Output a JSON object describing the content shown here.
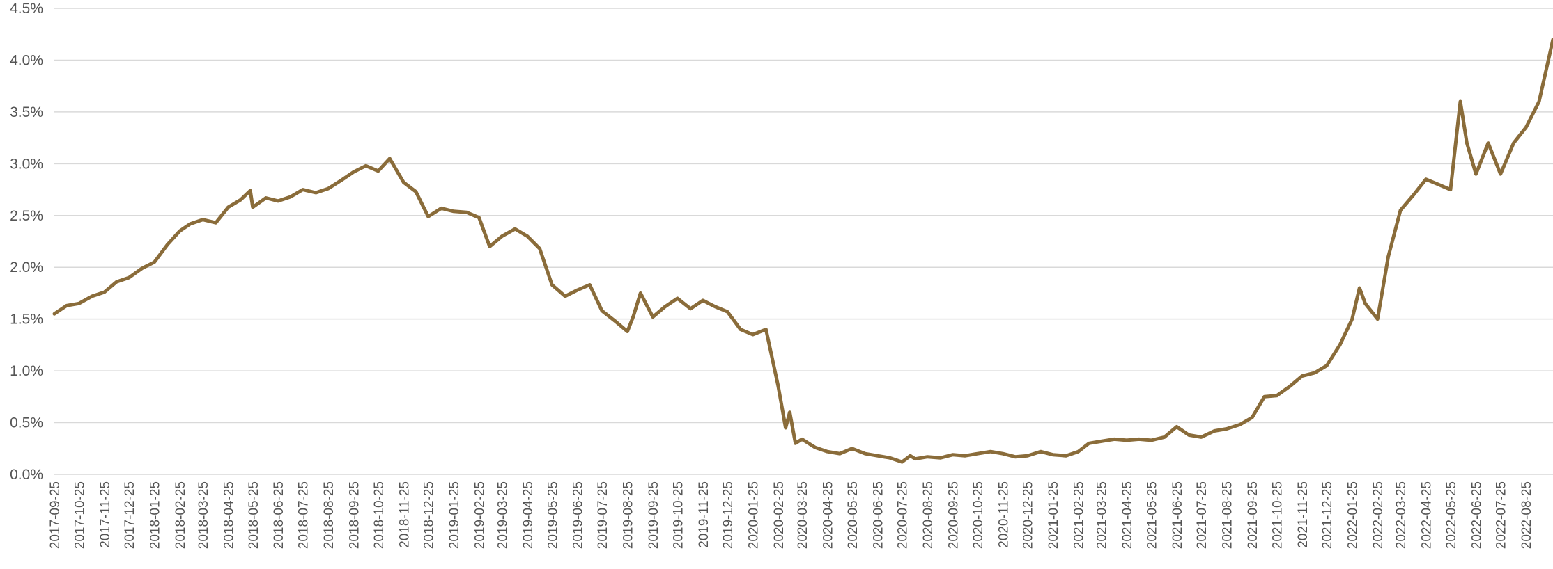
{
  "chart_data": {
    "type": "line",
    "title": "",
    "xlabel": "",
    "ylabel": "",
    "ylim": [
      0,
      4.5
    ],
    "xlim": [
      "2017-09-25",
      "2022-09-27"
    ],
    "grid": "horizontal",
    "legend": "none",
    "line_color": "#8a6c3a",
    "grid_color": "#d9d9d9",
    "y_ticks": [
      {
        "value": 0.0,
        "label": "0.0%"
      },
      {
        "value": 0.5,
        "label": "0.5%"
      },
      {
        "value": 1.0,
        "label": "1.0%"
      },
      {
        "value": 1.5,
        "label": "1.5%"
      },
      {
        "value": 2.0,
        "label": "2.0%"
      },
      {
        "value": 2.5,
        "label": "2.5%"
      },
      {
        "value": 3.0,
        "label": "3.0%"
      },
      {
        "value": 3.5,
        "label": "3.5%"
      },
      {
        "value": 4.0,
        "label": "4.0%"
      },
      {
        "value": 4.5,
        "label": "4.5%"
      }
    ],
    "x_ticks": [
      "2017-09-25",
      "2017-10-25",
      "2017-11-25",
      "2017-12-25",
      "2018-01-25",
      "2018-02-25",
      "2018-03-25",
      "2018-04-25",
      "2018-05-25",
      "2018-06-25",
      "2018-07-25",
      "2018-08-25",
      "2018-09-25",
      "2018-10-25",
      "2018-11-25",
      "2018-12-25",
      "2019-01-25",
      "2019-02-25",
      "2019-03-25",
      "2019-04-25",
      "2019-05-25",
      "2019-06-25",
      "2019-07-25",
      "2019-08-25",
      "2019-09-25",
      "2019-10-25",
      "2019-11-25",
      "2019-12-25",
      "2020-01-25",
      "2020-02-25",
      "2020-03-25",
      "2020-04-25",
      "2020-05-25",
      "2020-06-25",
      "2020-07-25",
      "2020-08-25",
      "2020-09-25",
      "2020-10-25",
      "2020-11-25",
      "2020-12-25",
      "2021-01-25",
      "2021-02-25",
      "2021-03-25",
      "2021-04-25",
      "2021-05-25",
      "2021-06-25",
      "2021-07-25",
      "2021-08-25",
      "2021-09-25",
      "2021-10-25",
      "2021-11-25",
      "2021-12-25",
      "2022-01-25",
      "2022-02-25",
      "2022-03-25",
      "2022-04-25",
      "2022-05-25",
      "2022-06-25",
      "2022-07-25",
      "2022-08-25"
    ],
    "series": [
      {
        "x": [
          "2017-09-25",
          "2017-10-10",
          "2017-10-25",
          "2017-11-10",
          "2017-11-25",
          "2017-12-10",
          "2017-12-25",
          "2018-01-10",
          "2018-01-25",
          "2018-02-10",
          "2018-02-25",
          "2018-03-10",
          "2018-03-25",
          "2018-04-10",
          "2018-04-25",
          "2018-05-10",
          "2018-05-22",
          "2018-05-25",
          "2018-06-10",
          "2018-06-25",
          "2018-07-10",
          "2018-07-25",
          "2018-08-10",
          "2018-08-25",
          "2018-09-10",
          "2018-09-25",
          "2018-10-10",
          "2018-10-25",
          "2018-11-08",
          "2018-11-25",
          "2018-12-10",
          "2018-12-25",
          "2019-01-10",
          "2019-01-25",
          "2019-02-10",
          "2019-02-25",
          "2019-03-10",
          "2019-03-25",
          "2019-04-10",
          "2019-04-25",
          "2019-05-10",
          "2019-05-25",
          "2019-06-10",
          "2019-06-25",
          "2019-07-10",
          "2019-07-25",
          "2019-08-10",
          "2019-08-25",
          "2019-09-01",
          "2019-09-10",
          "2019-09-25",
          "2019-10-10",
          "2019-10-25",
          "2019-11-10",
          "2019-11-25",
          "2019-12-10",
          "2019-12-25",
          "2020-01-10",
          "2020-01-25",
          "2020-02-10",
          "2020-02-25",
          "2020-03-05",
          "2020-03-10",
          "2020-03-17",
          "2020-03-25",
          "2020-04-10",
          "2020-04-25",
          "2020-05-10",
          "2020-05-25",
          "2020-06-10",
          "2020-06-25",
          "2020-07-10",
          "2020-07-25",
          "2020-08-04",
          "2020-08-10",
          "2020-08-25",
          "2020-09-10",
          "2020-09-25",
          "2020-10-10",
          "2020-10-25",
          "2020-11-10",
          "2020-11-25",
          "2020-12-10",
          "2020-12-25",
          "2021-01-10",
          "2021-01-25",
          "2021-02-10",
          "2021-02-25",
          "2021-03-10",
          "2021-03-25",
          "2021-04-10",
          "2021-04-25",
          "2021-05-10",
          "2021-05-25",
          "2021-06-10",
          "2021-06-25",
          "2021-07-10",
          "2021-07-25",
          "2021-08-10",
          "2021-08-25",
          "2021-09-10",
          "2021-09-25",
          "2021-10-10",
          "2021-10-25",
          "2021-11-10",
          "2021-11-25",
          "2021-12-10",
          "2021-12-25",
          "2022-01-10",
          "2022-01-25",
          "2022-02-03",
          "2022-02-10",
          "2022-02-25",
          "2022-03-10",
          "2022-03-25",
          "2022-04-10",
          "2022-04-25",
          "2022-05-10",
          "2022-05-25",
          "2022-06-06",
          "2022-06-14",
          "2022-06-25",
          "2022-07-10",
          "2022-07-25",
          "2022-08-10",
          "2022-08-25",
          "2022-09-10",
          "2022-09-27"
        ],
        "values": [
          1.55,
          1.63,
          1.65,
          1.72,
          1.76,
          1.86,
          1.9,
          1.99,
          2.05,
          2.22,
          2.35,
          2.42,
          2.46,
          2.43,
          2.58,
          2.65,
          2.74,
          2.58,
          2.67,
          2.64,
          2.68,
          2.75,
          2.72,
          2.76,
          2.84,
          2.92,
          2.98,
          2.93,
          3.05,
          2.82,
          2.73,
          2.49,
          2.57,
          2.54,
          2.53,
          2.48,
          2.2,
          2.3,
          2.37,
          2.3,
          2.18,
          1.83,
          1.72,
          1.78,
          1.83,
          1.58,
          1.48,
          1.38,
          1.52,
          1.75,
          1.52,
          1.62,
          1.7,
          1.6,
          1.68,
          1.62,
          1.57,
          1.4,
          1.35,
          1.4,
          0.85,
          0.45,
          0.6,
          0.3,
          0.34,
          0.26,
          0.22,
          0.2,
          0.25,
          0.2,
          0.18,
          0.16,
          0.12,
          0.18,
          0.15,
          0.17,
          0.16,
          0.19,
          0.18,
          0.2,
          0.22,
          0.2,
          0.17,
          0.18,
          0.22,
          0.19,
          0.18,
          0.22,
          0.3,
          0.32,
          0.34,
          0.33,
          0.34,
          0.33,
          0.36,
          0.46,
          0.38,
          0.36,
          0.42,
          0.44,
          0.48,
          0.55,
          0.75,
          0.76,
          0.85,
          0.95,
          0.98,
          1.05,
          1.25,
          1.5,
          1.8,
          1.65,
          1.5,
          2.1,
          2.55,
          2.7,
          2.85,
          2.8,
          2.75,
          3.6,
          3.2,
          2.9,
          3.2,
          2.9,
          3.2,
          3.35,
          3.6,
          4.2
        ]
      }
    ]
  }
}
